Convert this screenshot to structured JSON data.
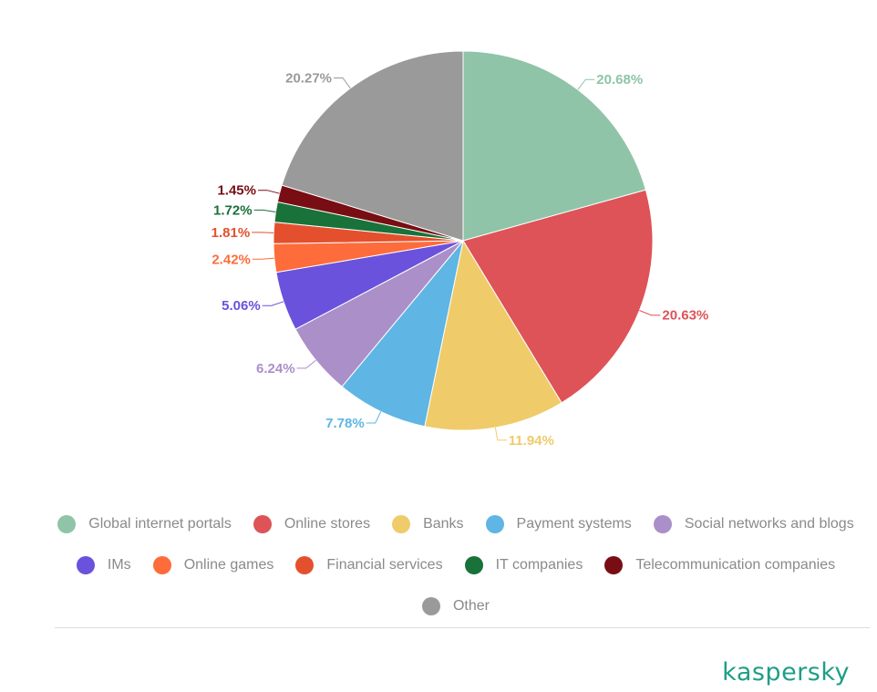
{
  "chart_data": {
    "type": "pie",
    "start_angle": "12 o'clock, clockwise",
    "slices": [
      {
        "label": "Global internet portals",
        "value": 20.68,
        "display": "20.68%",
        "color": "#8fc4a8"
      },
      {
        "label": "Online stores",
        "value": 20.63,
        "display": "20.63%",
        "color": "#de5357"
      },
      {
        "label": "Banks",
        "value": 11.94,
        "display": "11.94%",
        "color": "#efcb6a"
      },
      {
        "label": "Payment systems",
        "value": 7.78,
        "display": "7.78%",
        "color": "#5fb5e3"
      },
      {
        "label": "Social networks and blogs",
        "value": 6.24,
        "display": "6.24%",
        "color": "#aa8fc9"
      },
      {
        "label": "IMs",
        "value": 5.06,
        "display": "5.06%",
        "color": "#6b52dc"
      },
      {
        "label": "Online games",
        "value": 2.42,
        "display": "2.42%",
        "color": "#fd6c3a"
      },
      {
        "label": "Financial services",
        "value": 1.81,
        "display": "1.81%",
        "color": "#e4502d"
      },
      {
        "label": "IT companies",
        "value": 1.72,
        "display": "1.72%",
        "color": "#197239"
      },
      {
        "label": "Telecommunication companies",
        "value": 1.45,
        "display": "1.45%",
        "color": "#780e14"
      },
      {
        "label": "Other",
        "value": 20.27,
        "display": "20.27%",
        "color": "#9a9a9a"
      }
    ],
    "legend_position": "bottom",
    "legend_rows": [
      [
        "Global internet portals",
        "Online stores",
        "Banks",
        "Payment systems",
        "Social networks and blogs"
      ],
      [
        "IMs",
        "Online games",
        "Financial services",
        "IT companies",
        "Telecommunication companies"
      ],
      [
        "Other"
      ]
    ]
  },
  "brand": {
    "logo_text": "kaspersky",
    "color": "#1e9e86"
  }
}
